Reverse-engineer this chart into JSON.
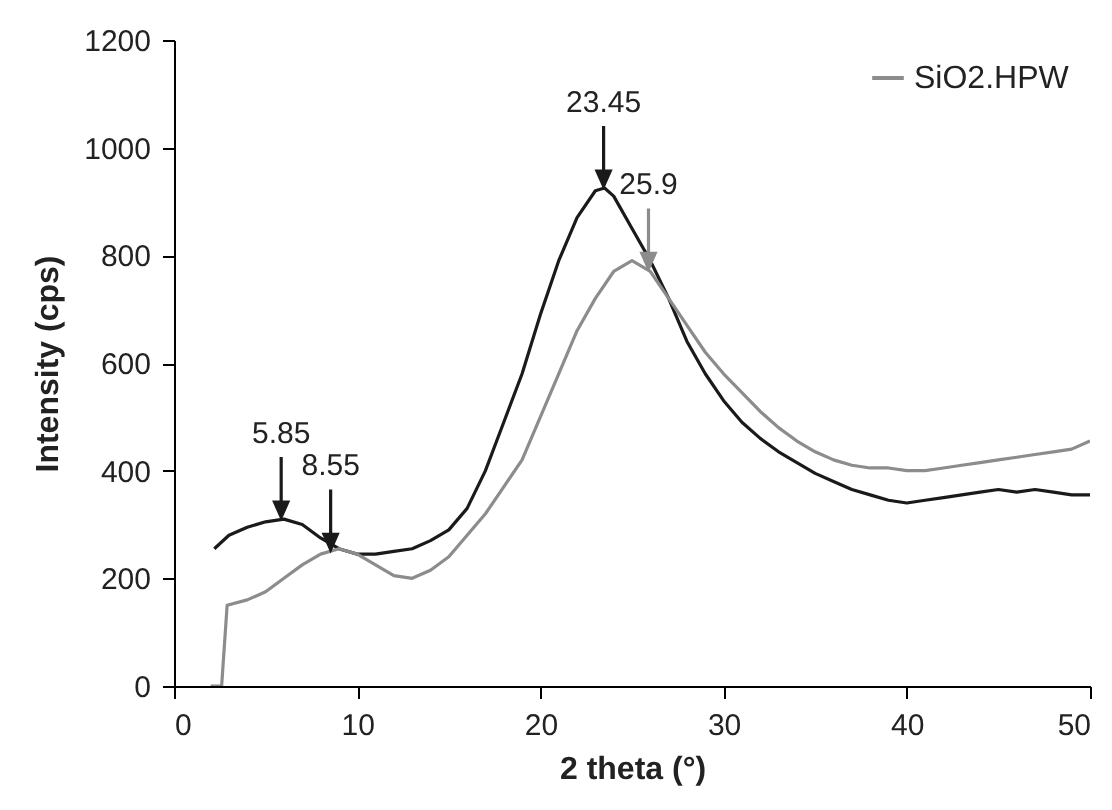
{
  "chart_data": {
    "type": "line",
    "xlabel": "2 theta (°)",
    "ylabel": "Intensity (cps)",
    "xlim": [
      0,
      50
    ],
    "xticks": [
      0,
      10,
      20,
      30,
      40,
      50
    ],
    "ylim": [
      0,
      1200
    ],
    "yticks": [
      0,
      200,
      400,
      600,
      800,
      1000,
      1200
    ],
    "grid": false,
    "legend": "top right",
    "series": [
      {
        "color": "#1a1a1a",
        "x": [
          2.2,
          3,
          4,
          5,
          6,
          7,
          8,
          9,
          10,
          11,
          12,
          13,
          14,
          15,
          16,
          17,
          18,
          19,
          20,
          21,
          22,
          23,
          23.5,
          24,
          25,
          26,
          27,
          28,
          29,
          30,
          31,
          32,
          33,
          34,
          35,
          36,
          37,
          38,
          39,
          40,
          41,
          42,
          43,
          44,
          45,
          46,
          47,
          48,
          49,
          50
        ],
        "values": [
          255,
          280,
          295,
          305,
          310,
          300,
          275,
          255,
          245,
          245,
          250,
          255,
          270,
          290,
          330,
          400,
          490,
          580,
          690,
          790,
          870,
          920,
          925,
          910,
          850,
          790,
          720,
          640,
          580,
          530,
          490,
          460,
          435,
          415,
          395,
          380,
          365,
          355,
          345,
          340,
          345,
          350,
          355,
          360,
          365,
          360,
          365,
          360,
          355,
          355
        ]
      },
      {
        "name": "SiO2.HPW",
        "color": "#8c8c8c",
        "x": [
          2,
          2.6,
          2.9,
          4,
          5,
          6,
          7,
          8,
          9,
          10,
          11,
          12,
          13,
          14,
          15,
          16,
          17,
          18,
          19,
          20,
          21,
          22,
          23,
          24,
          25,
          26,
          27,
          28,
          29,
          30,
          31,
          32,
          33,
          34,
          35,
          36,
          37,
          38,
          39,
          40,
          41,
          42,
          43,
          44,
          45,
          46,
          47,
          48,
          49,
          50
        ],
        "values": [
          0,
          0,
          150,
          160,
          175,
          200,
          225,
          245,
          255,
          245,
          225,
          205,
          200,
          215,
          240,
          280,
          320,
          370,
          420,
          500,
          580,
          660,
          720,
          770,
          790,
          770,
          720,
          670,
          620,
          580,
          545,
          510,
          480,
          455,
          435,
          420,
          410,
          405,
          405,
          400,
          400,
          405,
          410,
          415,
          420,
          425,
          430,
          435,
          440,
          455
        ]
      }
    ],
    "annotations": [
      {
        "text": "5.85",
        "x": 5.85,
        "y": 310
      },
      {
        "text": "8.55",
        "x": 8.55,
        "y": 250
      },
      {
        "text": "23.45",
        "x": 23.45,
        "y": 925
      },
      {
        "text": "25.9",
        "x": 25.9,
        "y": 772
      }
    ]
  }
}
